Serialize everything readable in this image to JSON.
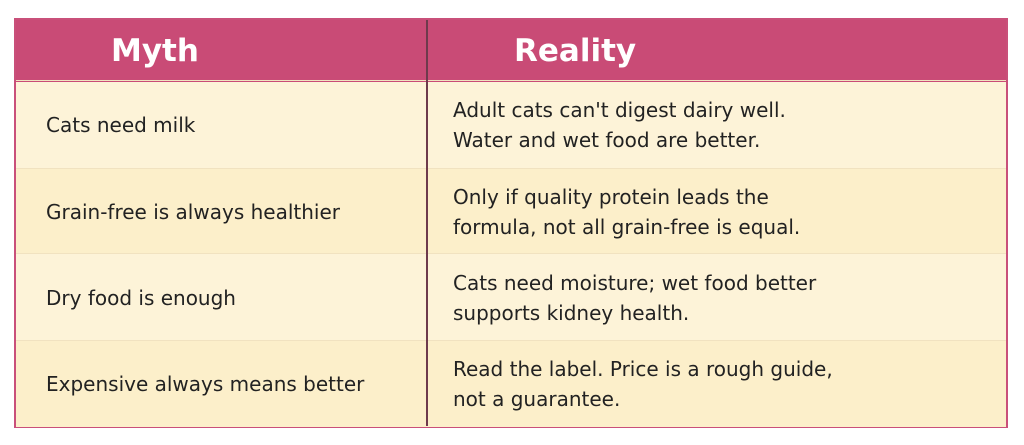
{
  "table": {
    "header": [
      "Myth",
      "Reality"
    ],
    "rows": [
      {
        "myth": "Cats need milk",
        "reality": [
          "Adult cats can't digest dairy well.",
          "Water and wet food are better."
        ]
      },
      {
        "myth": "Grain-free is always healthier",
        "reality": [
          "Only if quality protein leads the",
          "formula, not all grain-free is equal."
        ]
      },
      {
        "myth": "Dry food is enough",
        "reality": [
          "Cats need moisture; wet food better",
          "supports kidney health."
        ]
      },
      {
        "myth": "Expensive always means better",
        "reality": [
          "Read the label. Price is a rough guide,",
          "not a guarantee."
        ]
      }
    ]
  }
}
